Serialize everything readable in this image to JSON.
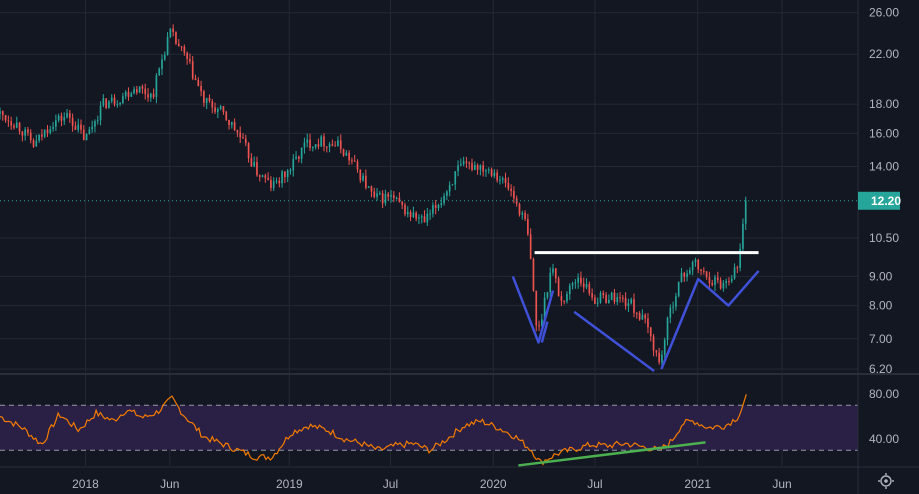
{
  "chart_data": {
    "type": "candlestick",
    "title": "",
    "colors": {
      "background": "#131722",
      "grid": "#242833",
      "up": "#26a69a",
      "down": "#ef5350",
      "resistance_line": "#ffffff",
      "pattern_lines": "#3f51d8",
      "divergence_line": "#4caf50",
      "rsi_line": "#f57c00",
      "rsi_band": "#2a1f45",
      "last_price_badge": "#26a69a",
      "axis_text": "#b2b5be"
    },
    "price_axis": {
      "scale": "log",
      "range": [
        6.1,
        26.5
      ],
      "tick_labels": [
        "6.20",
        "7.00",
        "8.00",
        "9.00",
        "10.50",
        "12.20",
        "14.00",
        "16.00",
        "18.00",
        "22.00",
        "26.00"
      ],
      "tick_values": [
        6.2,
        7.0,
        8.0,
        9.0,
        10.5,
        12.2,
        14.0,
        16.0,
        18.0,
        22.0,
        26.0
      ]
    },
    "time_axis": {
      "range": [
        "2017-08-01",
        "2021-10-15"
      ],
      "tick_labels": [
        "2018",
        "Jun",
        "2019",
        "Jul",
        "2020",
        "Jul",
        "2021",
        "Jun"
      ],
      "tick_dates": [
        "2018-01-01",
        "2018-06-01",
        "2019-01-01",
        "2019-07-01",
        "2020-01-01",
        "2020-07-01",
        "2021-01-01",
        "2021-06-01"
      ]
    },
    "last_price": {
      "label": "12.20",
      "value": 12.2,
      "date": "2021-03-29"
    },
    "price_path": [
      [
        "2017-08-01",
        17.3
      ],
      [
        "2017-09-01",
        16.6
      ],
      [
        "2017-10-01",
        15.2
      ],
      [
        "2017-11-01",
        16.7
      ],
      [
        "2017-12-01",
        17.2
      ],
      [
        "2018-01-01",
        15.6
      ],
      [
        "2018-02-01",
        18.0
      ],
      [
        "2018-03-01",
        18.4
      ],
      [
        "2018-04-01",
        19.3
      ],
      [
        "2018-05-01",
        18.6
      ],
      [
        "2018-06-01",
        24.0
      ],
      [
        "2018-07-01",
        21.5
      ],
      [
        "2018-08-01",
        18.2
      ],
      [
        "2018-09-01",
        17.4
      ],
      [
        "2018-10-01",
        16.0
      ],
      [
        "2018-11-01",
        13.8
      ],
      [
        "2018-12-01",
        12.9
      ],
      [
        "2019-01-01",
        13.8
      ],
      [
        "2019-02-01",
        15.4
      ],
      [
        "2019-03-01",
        15.5
      ],
      [
        "2019-04-01",
        15.2
      ],
      [
        "2019-05-01",
        13.9
      ],
      [
        "2019-06-01",
        12.3
      ],
      [
        "2019-07-01",
        12.4
      ],
      [
        "2019-08-01",
        11.6
      ],
      [
        "2019-09-01",
        11.2
      ],
      [
        "2019-10-01",
        12.3
      ],
      [
        "2019-11-01",
        13.9
      ],
      [
        "2019-12-01",
        14.1
      ],
      [
        "2020-01-01",
        13.8
      ],
      [
        "2020-02-01",
        12.7
      ],
      [
        "2020-03-01",
        11.0
      ],
      [
        "2020-03-20",
        7.0
      ],
      [
        "2020-04-15",
        9.4
      ],
      [
        "2020-05-01",
        8.1
      ],
      [
        "2020-06-01",
        9.0
      ],
      [
        "2020-07-01",
        8.2
      ],
      [
        "2020-08-01",
        8.3
      ],
      [
        "2020-09-01",
        8.1
      ],
      [
        "2020-10-01",
        7.4
      ],
      [
        "2020-10-25",
        6.3
      ],
      [
        "2020-11-15",
        8.0
      ],
      [
        "2020-12-01",
        8.9
      ],
      [
        "2020-12-25",
        9.5
      ],
      [
        "2021-01-15",
        9.0
      ],
      [
        "2021-02-15",
        8.7
      ],
      [
        "2021-03-15",
        9.4
      ],
      [
        "2021-03-29",
        12.2
      ]
    ],
    "resistance_line": {
      "price": 9.9,
      "from": "2020-03-15",
      "to": "2021-04-20"
    },
    "pattern_lines": [
      [
        [
          "2020-02-05",
          9.0
        ],
        [
          "2020-03-22",
          6.9
        ],
        [
          "2020-04-17",
          8.5
        ]
      ],
      [
        [
          "2020-03-28",
          6.9
        ],
        [
          "2020-04-07",
          7.5
        ]
      ],
      [
        [
          "2020-05-25",
          7.8
        ],
        [
          "2020-10-15",
          6.15
        ]
      ],
      [
        [
          "2020-10-28",
          6.2
        ],
        [
          "2021-01-02",
          8.9
        ],
        [
          "2021-02-25",
          8.0
        ],
        [
          "2021-04-20",
          9.2
        ]
      ]
    ],
    "rsi": {
      "tick_labels": [
        "40.00",
        "80.00"
      ],
      "tick_values": [
        40,
        80
      ],
      "upper": 70,
      "lower": 30,
      "range": [
        16,
        96
      ],
      "path": [
        [
          "2017-08-01",
          60
        ],
        [
          "2017-09-10",
          50
        ],
        [
          "2017-10-15",
          35
        ],
        [
          "2017-11-15",
          62
        ],
        [
          "2017-12-20",
          48
        ],
        [
          "2018-01-20",
          63
        ],
        [
          "2018-02-20",
          56
        ],
        [
          "2018-03-15",
          66
        ],
        [
          "2018-04-15",
          59
        ],
        [
          "2018-05-10",
          64
        ],
        [
          "2018-06-05",
          76
        ],
        [
          "2018-06-25",
          62
        ],
        [
          "2018-08-01",
          42
        ],
        [
          "2018-09-01",
          36
        ],
        [
          "2018-10-01",
          30
        ],
        [
          "2018-11-01",
          24
        ],
        [
          "2018-12-01",
          24
        ],
        [
          "2019-01-05",
          46
        ],
        [
          "2019-02-05",
          52
        ],
        [
          "2019-03-10",
          48
        ],
        [
          "2019-04-10",
          40
        ],
        [
          "2019-05-10",
          36
        ],
        [
          "2019-06-10",
          30
        ],
        [
          "2019-07-10",
          34
        ],
        [
          "2019-08-10",
          36
        ],
        [
          "2019-09-10",
          30
        ],
        [
          "2019-10-10",
          40
        ],
        [
          "2019-11-10",
          52
        ],
        [
          "2019-12-10",
          56
        ],
        [
          "2020-01-10",
          50
        ],
        [
          "2020-02-10",
          42
        ],
        [
          "2020-03-10",
          30
        ],
        [
          "2020-03-25",
          19
        ],
        [
          "2020-04-25",
          27
        ],
        [
          "2020-05-25",
          31
        ],
        [
          "2020-06-25",
          35
        ],
        [
          "2020-07-25",
          34
        ],
        [
          "2020-08-25",
          36
        ],
        [
          "2020-09-25",
          33
        ],
        [
          "2020-10-25",
          30
        ],
        [
          "2020-11-15",
          38
        ],
        [
          "2020-12-05",
          54
        ],
        [
          "2020-12-25",
          56
        ],
        [
          "2021-01-20",
          50
        ],
        [
          "2021-02-20",
          52
        ],
        [
          "2021-03-15",
          60
        ],
        [
          "2021-03-29",
          77
        ]
      ],
      "divergence_line": [
        [
          "2020-02-15",
          16.5
        ],
        [
          "2021-01-15",
          37
        ]
      ]
    }
  }
}
